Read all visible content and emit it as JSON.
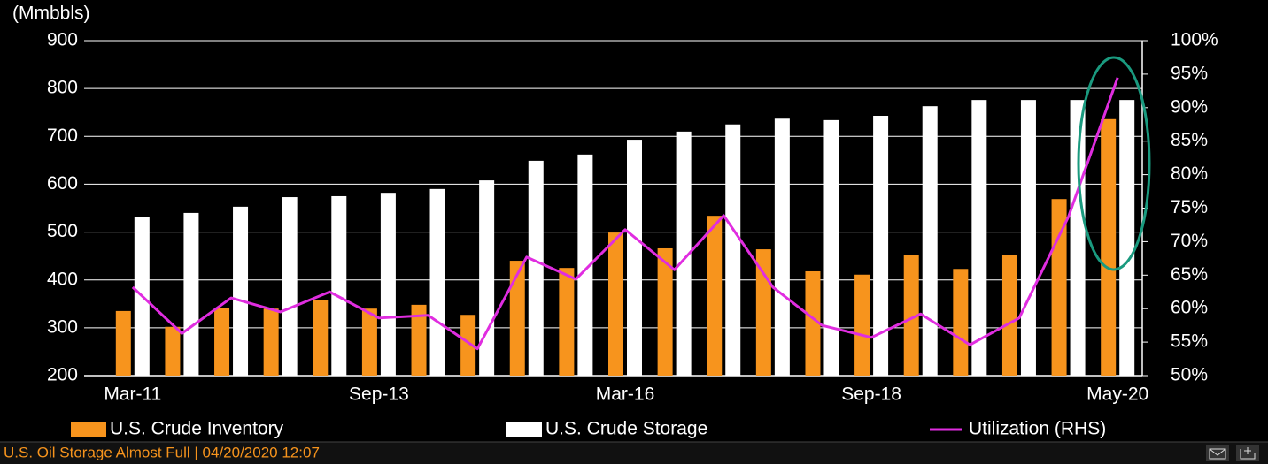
{
  "chart_data": {
    "type": "bar",
    "y_label": "(Mmbbls)",
    "categories": [
      "Mar-11",
      null,
      null,
      null,
      null,
      "Sep-13",
      null,
      null,
      null,
      null,
      "Mar-16",
      null,
      null,
      null,
      null,
      "Sep-18",
      null,
      null,
      null,
      null,
      "May-20"
    ],
    "series": [
      {
        "name": "U.S. Crude Inventory",
        "color": "#f7941d",
        "values": [
          335,
          302,
          342,
          340,
          357,
          340,
          348,
          327,
          440,
          425,
          499,
          466,
          534,
          464,
          418,
          411,
          453,
          423,
          453,
          569,
          736
        ]
      },
      {
        "name": "U.S. Crude Storage",
        "color": "#ffffff",
        "values": [
          531,
          540,
          553,
          573,
          575,
          582,
          590,
          608,
          649,
          662,
          693,
          710,
          725,
          737,
          734,
          743,
          763,
          776,
          776,
          776,
          776
        ]
      },
      {
        "name": "Utilization (RHS)",
        "type": "line",
        "axis": "y2",
        "color": "#e02de0",
        "values": [
          63.2,
          56.3,
          61.6,
          59.5,
          62.5,
          58.6,
          59.0,
          54.0,
          67.7,
          64.4,
          71.8,
          65.8,
          73.9,
          63.2,
          57.5,
          55.7,
          59.2,
          54.6,
          58.6,
          73.7,
          94.5
        ]
      }
    ],
    "ylim": [
      200,
      900
    ],
    "yticks": [
      200,
      300,
      400,
      500,
      600,
      700,
      800,
      900
    ],
    "y2lim": [
      50,
      100
    ],
    "y2ticks": [
      {
        "value": 50,
        "label": "50%"
      },
      {
        "value": 55,
        "label": "55%"
      },
      {
        "value": 60,
        "label": "60%"
      },
      {
        "value": 65,
        "label": "65%"
      },
      {
        "value": 70,
        "label": "70%"
      },
      {
        "value": 75,
        "label": "75%"
      },
      {
        "value": 80,
        "label": "80%"
      },
      {
        "value": 85,
        "label": "85%"
      },
      {
        "value": 90,
        "label": "90%"
      },
      {
        "value": 95,
        "label": "95%"
      },
      {
        "value": 100,
        "label": "100%"
      }
    ],
    "grid": true,
    "legend": "bottom"
  },
  "footer": {
    "title": "U.S. Oil Storage Almost Full  | 04/20/2020 12:07"
  }
}
